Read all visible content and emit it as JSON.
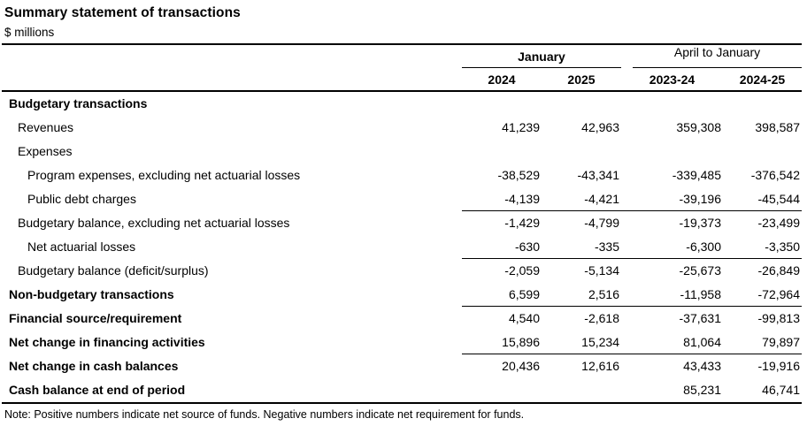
{
  "title": "Summary statement of transactions",
  "units": "$ millions",
  "note": "Note: Positive numbers indicate net source of funds. Negative numbers indicate net requirement for funds.",
  "colors": {
    "text": "#000000",
    "rules": "#000000",
    "background": "#ffffff"
  },
  "table": {
    "col_groups": [
      {
        "label": "January"
      },
      {
        "label": "April to January"
      }
    ],
    "columns": [
      "2024",
      "2025",
      "2023-24",
      "2024-25"
    ],
    "rows": [
      {
        "label": "Budgetary transactions",
        "indent": 0,
        "bold": true,
        "values": [
          "",
          "",
          "",
          ""
        ],
        "rule_below": false
      },
      {
        "label": "Revenues",
        "indent": 1,
        "bold": false,
        "values": [
          "41,239",
          "42,963",
          "359,308",
          "398,587"
        ],
        "rule_below": false
      },
      {
        "label": "Expenses",
        "indent": 1,
        "bold": false,
        "values": [
          "",
          "",
          "",
          ""
        ],
        "rule_below": false
      },
      {
        "label": "Program expenses, excluding net actuarial losses",
        "indent": 2,
        "bold": false,
        "values": [
          "-38,529",
          "-43,341",
          "-339,485",
          "-376,542"
        ],
        "rule_below": false
      },
      {
        "label": "Public debt charges",
        "indent": 2,
        "bold": false,
        "values": [
          "-4,139",
          "-4,421",
          "-39,196",
          "-45,544"
        ],
        "rule_below": true
      },
      {
        "label": "Budgetary balance, excluding net actuarial losses",
        "indent": 1,
        "bold": false,
        "values": [
          "-1,429",
          "-4,799",
          "-19,373",
          "-23,499"
        ],
        "rule_below": false
      },
      {
        "label": "Net actuarial losses",
        "indent": 2,
        "bold": false,
        "values": [
          "-630",
          "-335",
          "-6,300",
          "-3,350"
        ],
        "rule_below": true
      },
      {
        "label": "Budgetary balance (deficit/surplus)",
        "indent": 1,
        "bold": false,
        "values": [
          "-2,059",
          "-5,134",
          "-25,673",
          "-26,849"
        ],
        "rule_below": false
      },
      {
        "label": "Non-budgetary transactions",
        "indent": 0,
        "bold": true,
        "values": [
          "6,599",
          "2,516",
          "-11,958",
          "-72,964"
        ],
        "rule_below": true
      },
      {
        "label": "Financial source/requirement",
        "indent": 0,
        "bold": true,
        "values": [
          "4,540",
          "-2,618",
          "-37,631",
          "-99,813"
        ],
        "rule_below": false
      },
      {
        "label": "Net change in financing activities",
        "indent": 0,
        "bold": true,
        "values": [
          "15,896",
          "15,234",
          "81,064",
          "79,897"
        ],
        "rule_below": true
      },
      {
        "label": "Net change in cash balances",
        "indent": 0,
        "bold": true,
        "values": [
          "20,436",
          "12,616",
          "43,433",
          "-19,916"
        ],
        "rule_below": false
      },
      {
        "label": "Cash balance at end of period",
        "indent": 0,
        "bold": true,
        "values": [
          "",
          "",
          "85,231",
          "46,741"
        ],
        "rule_below": false
      }
    ]
  }
}
